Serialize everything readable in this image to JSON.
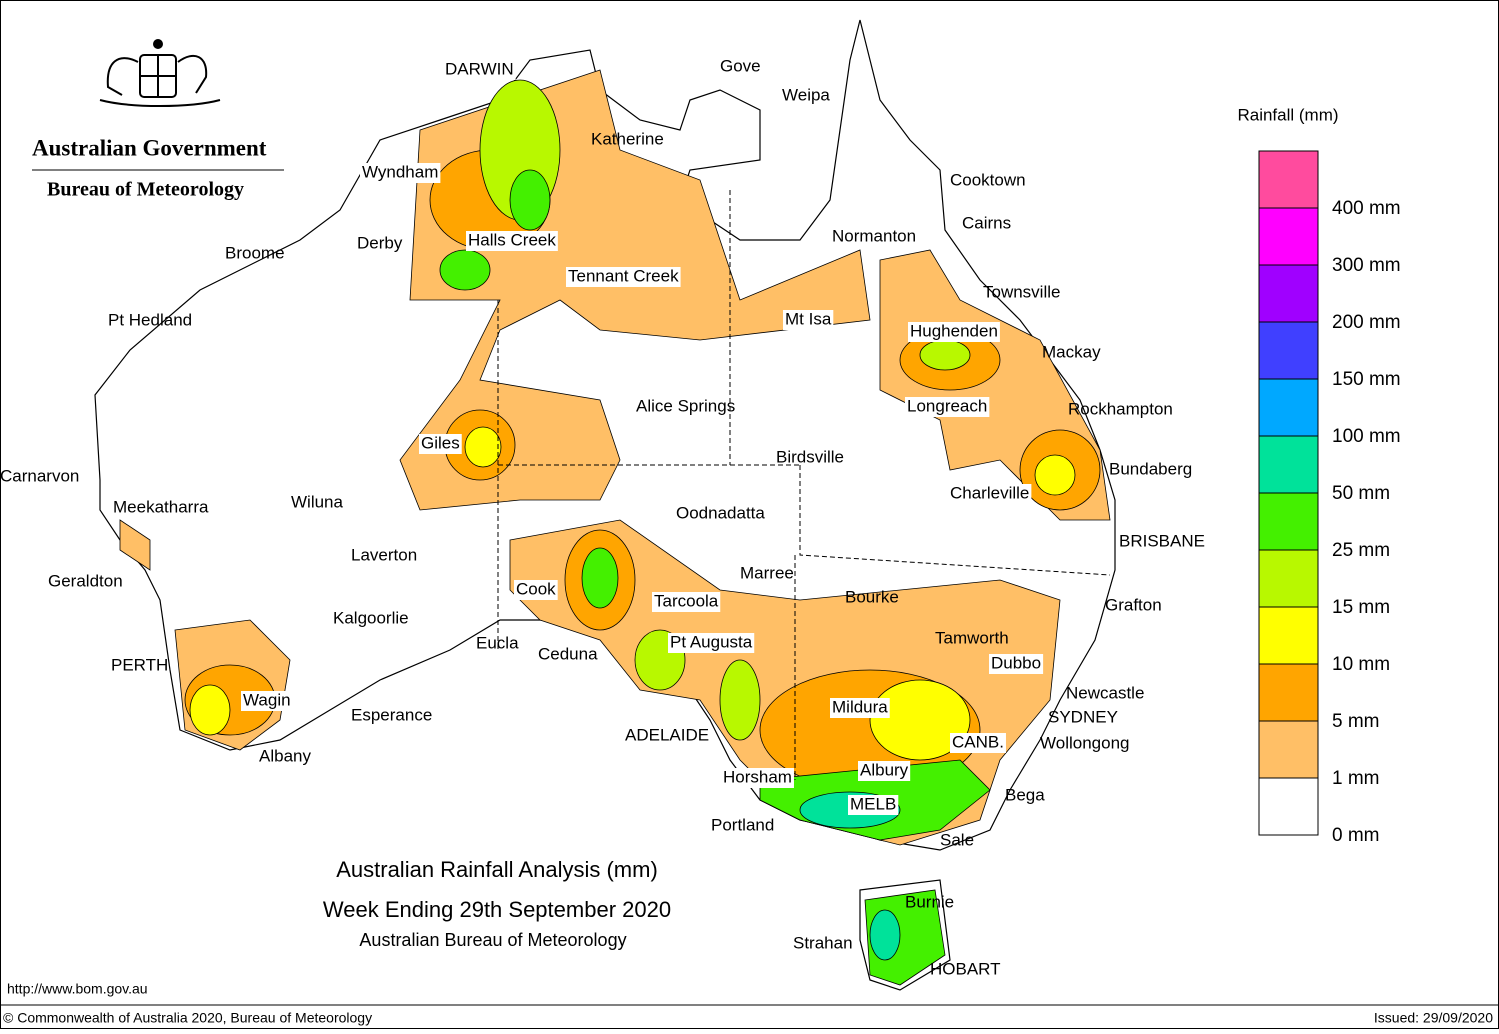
{
  "header": {
    "government": "Australian Government",
    "bureau": "Bureau of Meteorology"
  },
  "legend": {
    "title": "Rainfall (mm)",
    "colors": [
      "#ff4b9e",
      "#ff00ff",
      "#a000ff",
      "#4040ff",
      "#00a8ff",
      "#00e29a",
      "#44f000",
      "#b8f800",
      "#ffff00",
      "#ffa500",
      "#ffbf66",
      "#ffffff"
    ],
    "labels": [
      "400 mm",
      "300 mm",
      "200 mm",
      "150 mm",
      "100 mm",
      "50 mm",
      "25 mm",
      "15 mm",
      "10 mm",
      "5 mm",
      "1 mm",
      "0 mm"
    ]
  },
  "places": [
    "DARWIN",
    "Gove",
    "Weipa",
    "Katherine",
    "Wyndham",
    "Cooktown",
    "Derby",
    "Halls Creek",
    "Broome",
    "Normanton",
    "Cairns",
    "Tennant Creek",
    "Townsville",
    "Pt Hedland",
    "Mt Isa",
    "Hughenden",
    "Mackay",
    "Alice Springs",
    "Longreach",
    "Rockhampton",
    "Giles",
    "Birdsville",
    "Bundaberg",
    "Carnarvon",
    "Charleville",
    "Wiluna",
    "Meekatharra",
    "Oodnadatta",
    "BRISBANE",
    "Laverton",
    "Marree",
    "Geraldton",
    "Cook",
    "Bourke",
    "Tarcoola",
    "Grafton",
    "Kalgoorlie",
    "Tamworth",
    "Eucla",
    "Pt Augusta",
    "Ceduna",
    "Dubbo",
    "PERTH",
    "Newcastle",
    "Wagin",
    "Mildura",
    "Esperance",
    "SYDNEY",
    "ADELAIDE",
    "CANB.",
    "Wollongong",
    "Albany",
    "Albury",
    "Horsham",
    "Bega",
    "MELB",
    "Portland",
    "Sale",
    "Burnie",
    "Strahan",
    "HOBART"
  ],
  "title": {
    "line1": "Australian Rainfall Analysis (mm)",
    "line2": "Week Ending 29th September 2020",
    "line3": "Australian Bureau of Meteorology"
  },
  "footer": {
    "url": "http://www.bom.gov.au",
    "copyright": "© Commonwealth of Australia 2020, Bureau of Meteorology",
    "issued": "Issued: 29/09/2020"
  }
}
